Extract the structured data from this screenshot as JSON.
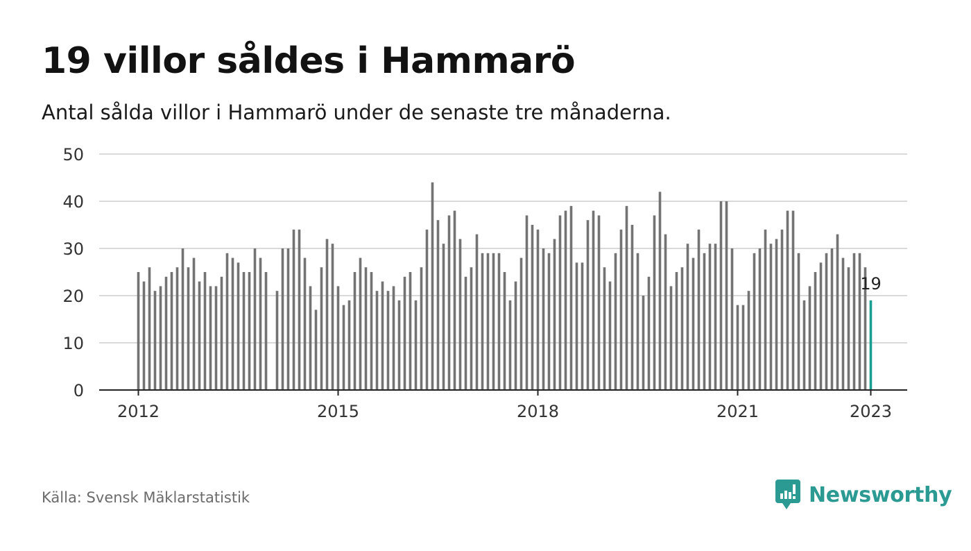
{
  "title": "19 villor såldes i Hammarö",
  "subtitle": "Antal sålda villor i Hammarö under de senaste tre månaderna.",
  "source": "Källa: Svensk Mäklarstatistik",
  "brand": {
    "name": "Newsworthy",
    "icon": "newsworthy-logo-icon",
    "color": "#2b9a92"
  },
  "colors": {
    "bar": "#737373",
    "highlight": "#1a9e92",
    "grid": "#d9d9d9",
    "axis": "#222222"
  },
  "chart_data": {
    "type": "bar",
    "x_start": "2012-01",
    "interval": "month",
    "values": [
      25,
      23,
      26,
      21,
      22,
      24,
      25,
      26,
      30,
      26,
      28,
      23,
      25,
      22,
      22,
      24,
      29,
      28,
      27,
      25,
      25,
      30,
      28,
      25,
      null,
      21,
      30,
      30,
      34,
      34,
      28,
      22,
      17,
      26,
      32,
      31,
      22,
      18,
      19,
      25,
      28,
      26,
      25,
      21,
      23,
      21,
      22,
      19,
      24,
      25,
      19,
      26,
      34,
      44,
      36,
      31,
      37,
      38,
      32,
      24,
      26,
      33,
      29,
      29,
      29,
      29,
      25,
      19,
      23,
      28,
      37,
      35,
      34,
      30,
      29,
      32,
      37,
      38,
      39,
      27,
      27,
      36,
      38,
      37,
      26,
      23,
      29,
      34,
      39,
      35,
      29,
      20,
      24,
      37,
      42,
      33,
      22,
      25,
      26,
      31,
      28,
      34,
      29,
      31,
      31,
      40,
      40,
      30,
      18,
      18,
      21,
      29,
      30,
      34,
      31,
      32,
      34,
      38,
      38,
      29,
      19,
      22,
      25,
      27,
      29,
      30,
      33,
      28,
      26,
      29,
      29,
      26,
      19
    ],
    "highlight_last": true,
    "highlight_label": "19",
    "xticks": [
      "2012",
      "2015",
      "2018",
      "2021",
      "2023"
    ],
    "xtick_positions": [
      "2012-01",
      "2015-01",
      "2018-01",
      "2021-01",
      "2023-01"
    ],
    "yticks": [
      0,
      10,
      20,
      30,
      40,
      50
    ],
    "ylim": [
      0,
      50
    ],
    "xlabel": "",
    "ylabel": "",
    "grid": true
  }
}
